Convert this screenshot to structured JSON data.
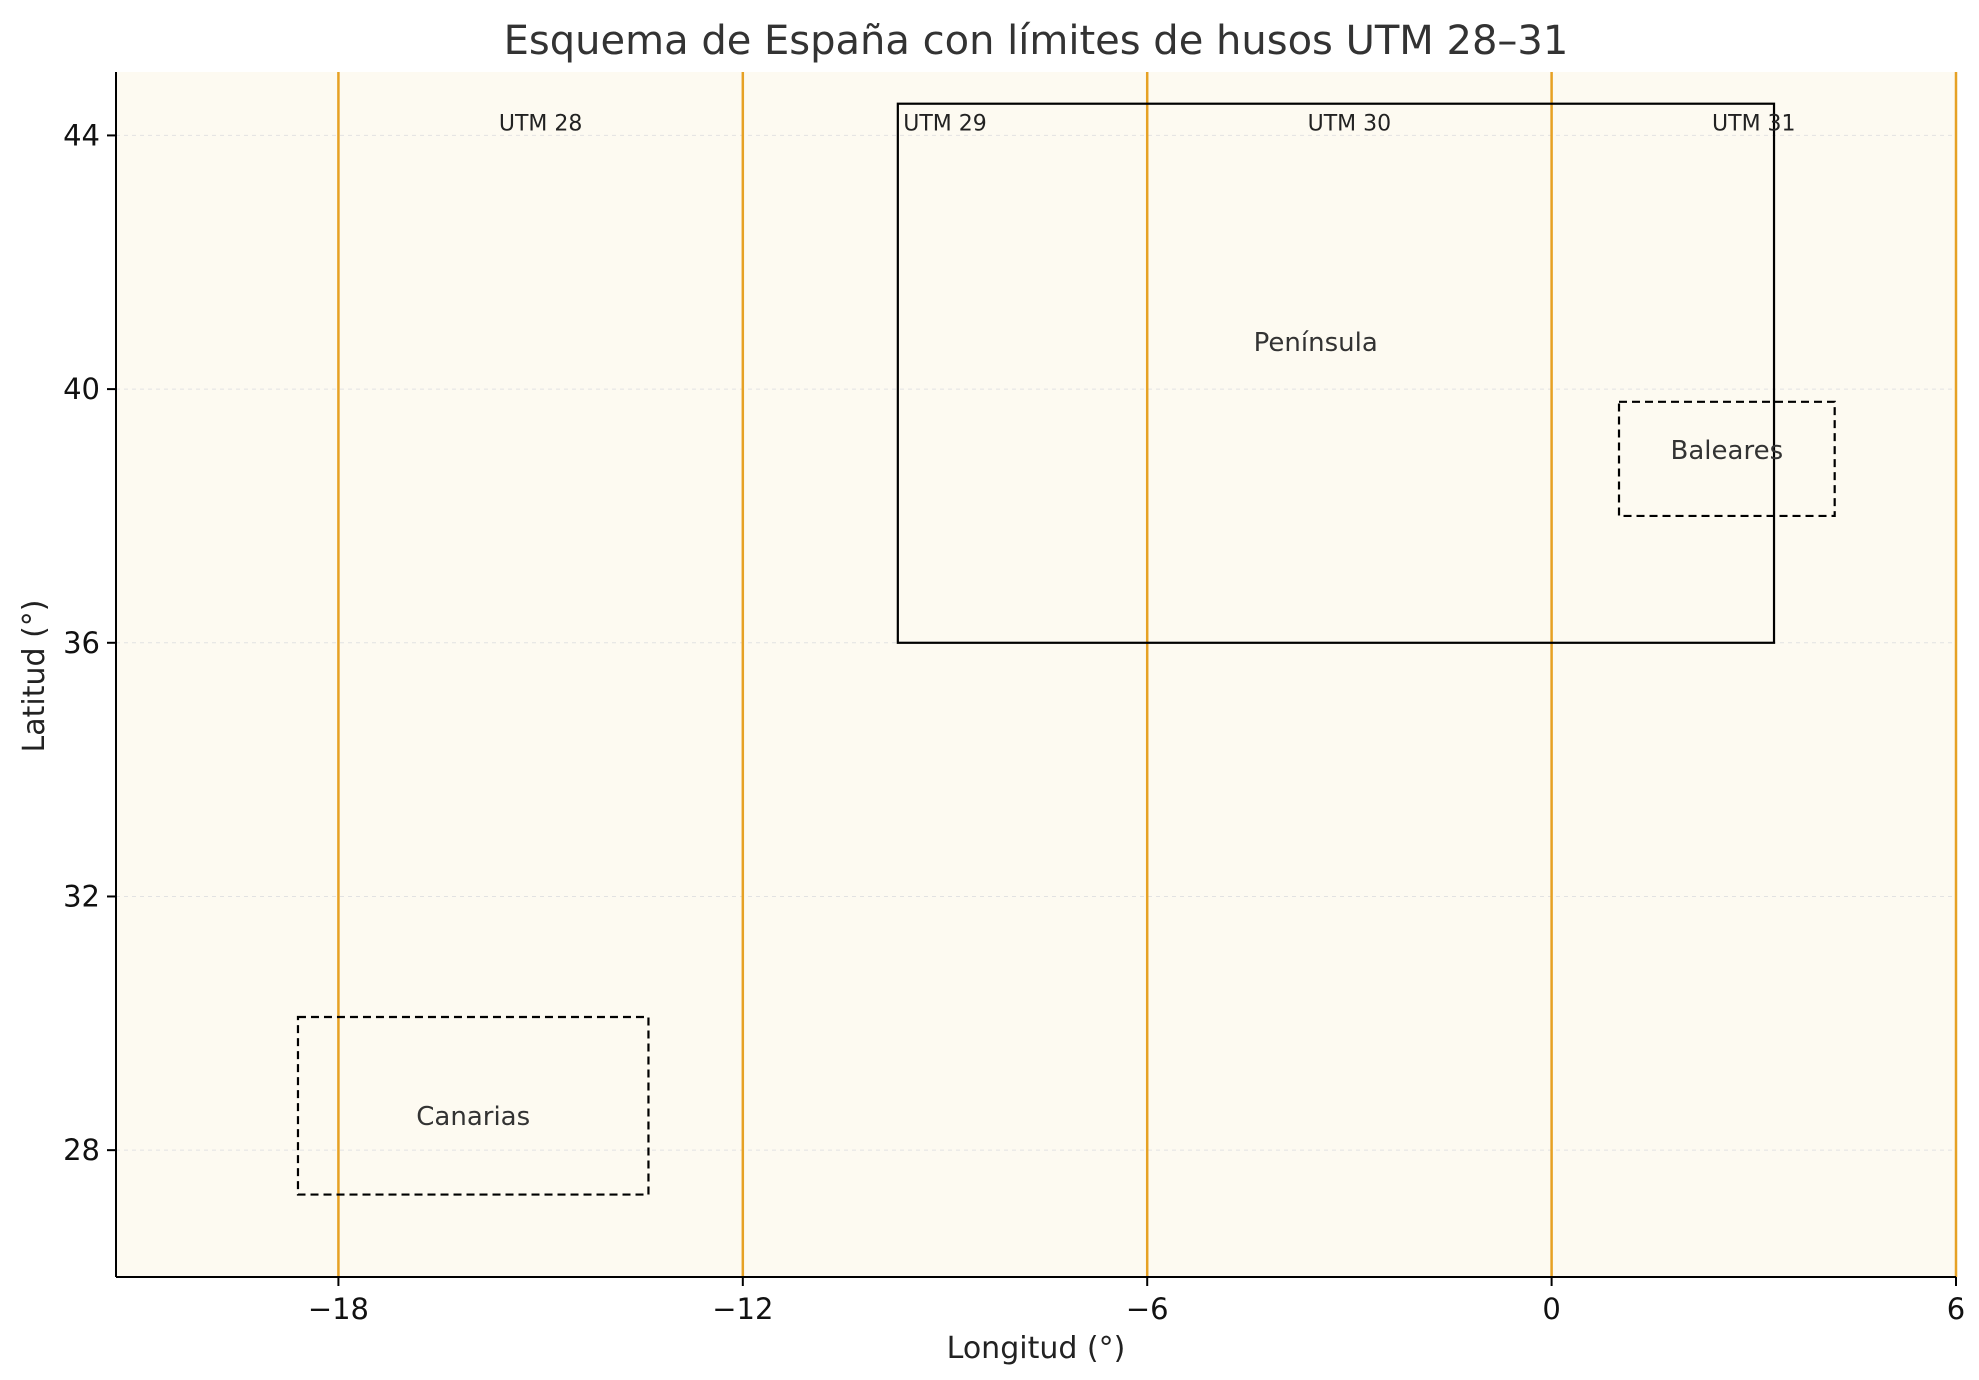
{
  "chart_data": {
    "type": "scatter",
    "title": "Esquema de España con límites de husos UTM 28–31",
    "xlabel": "Longitud (°)",
    "ylabel": "Latitud (°)",
    "xlim": [
      -21.3,
      6
    ],
    "ylim": [
      26,
      45
    ],
    "x_ticks": [
      -18,
      -12,
      -6,
      0,
      6
    ],
    "x_tick_labels": [
      "−18",
      "−12",
      "−6",
      "0",
      "6"
    ],
    "y_ticks": [
      28,
      32,
      36,
      40,
      44
    ],
    "y_tick_labels": [
      "28",
      "32",
      "36",
      "40",
      "44"
    ],
    "grid": true,
    "legend": "none",
    "zone_boundaries": [
      -18,
      -12,
      -6,
      0,
      6
    ],
    "zone_labels": [
      {
        "text": "UTM 28",
        "x": -15,
        "y": 44.2
      },
      {
        "text": "UTM 29",
        "x": -9,
        "y": 44.2
      },
      {
        "text": "UTM 30",
        "x": -3,
        "y": 44.2
      },
      {
        "text": "UTM 31",
        "x": 3,
        "y": 44.2
      }
    ],
    "regions": [
      {
        "label": "Península",
        "x0": -9.7,
        "x1": 3.3,
        "y0": 36.0,
        "y1": 44.5,
        "style": "solid",
        "label_x": -3.5,
        "label_y": 40.6
      },
      {
        "label": "Baleares",
        "x0": 1.0,
        "x1": 4.2,
        "y0": 38.0,
        "y1": 39.8,
        "style": "dashed",
        "label_x": 2.6,
        "label_y": 38.9
      },
      {
        "label": "Canarias",
        "x0": -18.6,
        "x1": -13.4,
        "y0": 27.3,
        "y1": 30.1,
        "style": "dashed",
        "label_x": -16.0,
        "label_y": 28.4
      }
    ],
    "colors": {
      "zone_line": "#E6A124",
      "plot_background": "#FDFAF1",
      "frame": "#000000",
      "grid": "#E2E2E2",
      "text": "#333333"
    }
  }
}
